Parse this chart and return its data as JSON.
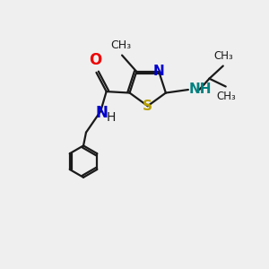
{
  "bg_color": "#efefef",
  "bond_color": "#1a1a1a",
  "S_color": "#b8a000",
  "N_color": "#0000cc",
  "O_color": "#ee0000",
  "NH_color": "#008080",
  "font_size": 10,
  "fig_size": [
    3.0,
    3.0
  ],
  "dpi": 100,
  "xlim": [
    0,
    10
  ],
  "ylim": [
    0,
    10
  ]
}
